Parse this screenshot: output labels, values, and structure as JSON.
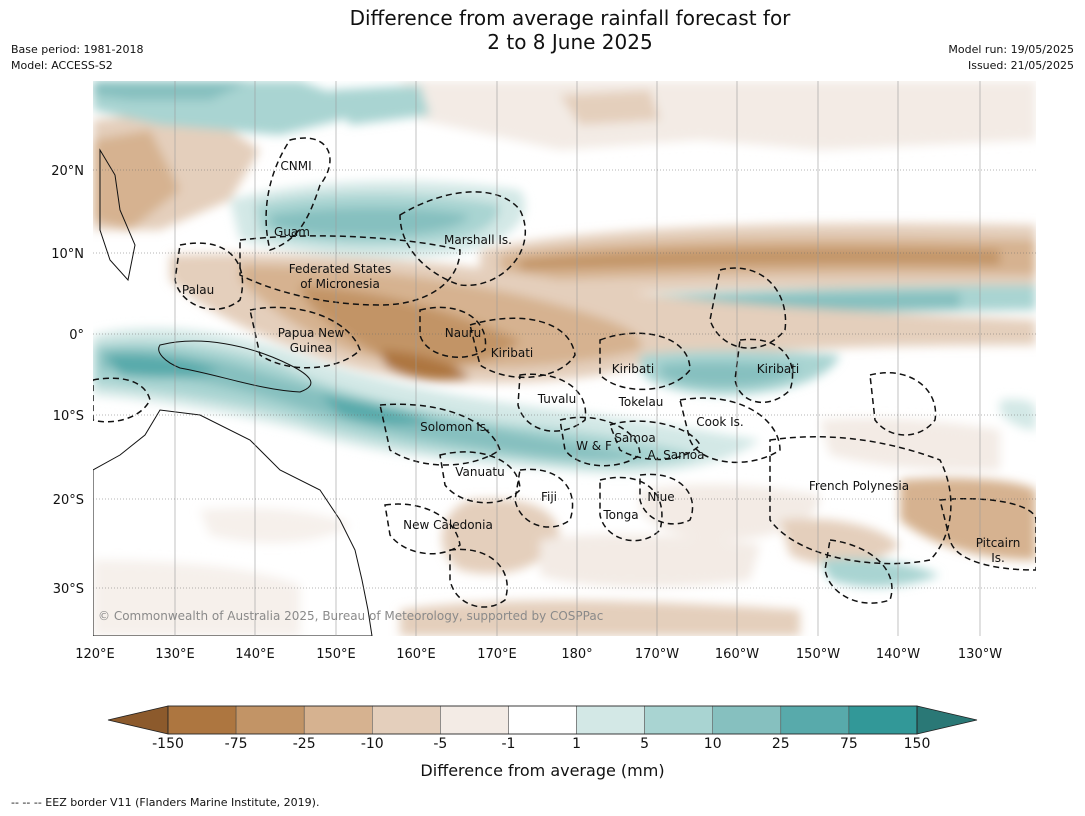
{
  "title_line1": "Difference from average rainfall forecast for",
  "title_line2": "2 to 8 June 2025",
  "meta_left": [
    "Base period: 1981-2018",
    "Model: ACCESS-S2"
  ],
  "meta_right": [
    "Model run: 19/05/2025",
    "Issued: 21/05/2025"
  ],
  "lon_ticks": [
    "120°E",
    "130°E",
    "140°E",
    "150°E",
    "160°E",
    "170°E",
    "180°",
    "170°W",
    "160°W",
    "150°W",
    "140°W",
    "130°W"
  ],
  "lat_ticks": [
    "20°N",
    "10°N",
    "0°",
    "10°S",
    "20°S",
    "30°S"
  ],
  "places": [
    "CNMI",
    "Guam",
    "Marshall Is.",
    "Federated States",
    "of Micronesia",
    "Palau",
    "Papua New",
    "Guinea",
    "Nauru",
    "Kiribati",
    "Kiribati",
    "Kiribati",
    "Tuvalu",
    "Tokelau",
    "Cook Is.",
    "Solomon Is.",
    "W & F",
    "Samoa",
    "A. Samoa",
    "Vanuatu",
    "Fiji",
    "Niue",
    "Tonga",
    "French Polynesia",
    "New Caledonia",
    "Pitcairn",
    "Is."
  ],
  "copyright": "© Commonwealth of Australia 2025, Bureau of Meteorology, supported by COSPPac",
  "colorbar": {
    "title": "Difference from average (mm)",
    "labels": [
      "-150",
      "-75",
      "-25",
      "-10",
      "-5",
      "-1",
      "1",
      "5",
      "10",
      "25",
      "75",
      "150"
    ],
    "colors": [
      "#8c5a2c",
      "#ad7640",
      "#c29466",
      "#d6b290",
      "#e4cfbc",
      "#f3ebe5",
      "#ffffff",
      "#d3e8e6",
      "#a9d4d2",
      "#86c0bf",
      "#58aaab",
      "#329898",
      "#2a7876"
    ]
  },
  "footnote": "--  --  -- EEZ border V11 (Flanders Marine Institute, 2019)."
}
